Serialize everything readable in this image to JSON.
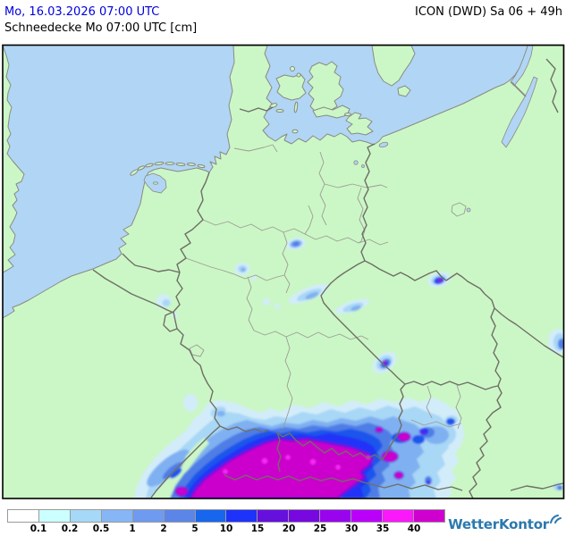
{
  "header": {
    "datetime": "Mo, 16.03.2026 07:00 UTC",
    "datetime_color": "#0000dd",
    "model_run": "ICON (DWD) Sa 06 + 49h",
    "subtitle": "Schneedecke Mo 07:00 UTC [cm]"
  },
  "legend": {
    "unit": "cm",
    "thresholds": [
      "0.1",
      "0.2",
      "0.5",
      "1",
      "2",
      "5",
      "10",
      "15",
      "20",
      "25",
      "30",
      "35",
      "40"
    ],
    "colors": [
      "#ffffff",
      "#ccffff",
      "#a6d8f7",
      "#86b6f5",
      "#6e9af0",
      "#5b86e8",
      "#1766ee",
      "#1d33fa",
      "#6610dd",
      "#7708e0",
      "#9904ee",
      "#bb00fa",
      "#fb18fb",
      "#cf00cf"
    ]
  },
  "map": {
    "sea_color": "#b1d5f4",
    "land_color": "#cbf7c6",
    "country_border_color": "#6f6f66",
    "state_border_color": "#9c9c94",
    "frame_color": "#000000",
    "snow_max_color": "#cc00cc"
  },
  "branding": {
    "logo_text": "WetterKontor",
    "logo_color": "#2b79ae",
    "logo_icon": "wing-icon"
  }
}
